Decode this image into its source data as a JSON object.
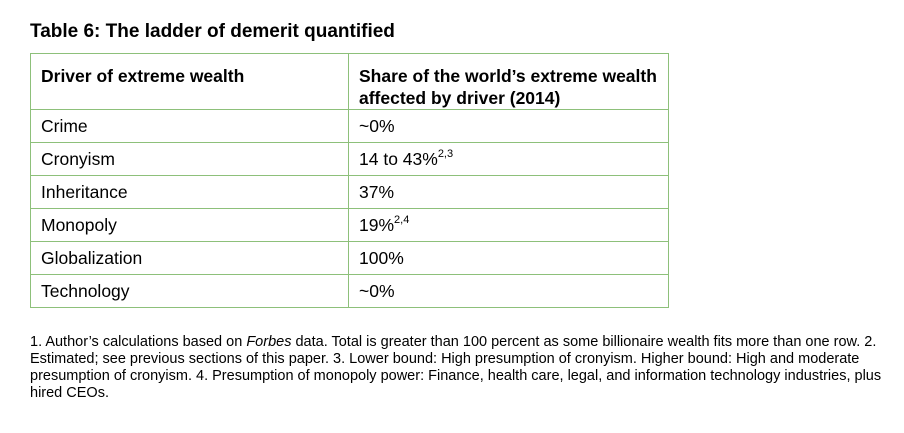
{
  "title": "Table 6: The ladder of demerit quantified",
  "table": {
    "headers": [
      "Driver of extreme wealth",
      "Share of the world’s extreme wealth affected by driver (2014)"
    ],
    "rows": [
      {
        "driver": "Crime",
        "share": "~0%",
        "sup": ""
      },
      {
        "driver": "Cronyism",
        "share": "14 to 43%",
        "sup": "2,3"
      },
      {
        "driver": "Inheritance",
        "share": "37%",
        "sup": ""
      },
      {
        "driver": "Monopoly",
        "share": "19%",
        "sup": "2,4"
      },
      {
        "driver": "Globalization",
        "share": "100%",
        "sup": ""
      },
      {
        "driver": "Technology",
        "share": "~0%",
        "sup": ""
      }
    ]
  },
  "footnote": {
    "part1": "1. Author’s calculations based on ",
    "italic": "Forbes",
    "part2": " data. Total is greater than 100 percent as some billionaire wealth fits more than one row. 2. Estimated; see previous sections of this paper. 3. Lower bound: High presumption of cronyism. Higher bound: High and moderate presumption of cronyism. 4. Presumption of monopoly power: Finance, health care, legal, and information technology industries, plus hired CEOs."
  }
}
